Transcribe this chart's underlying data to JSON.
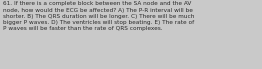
{
  "text": "61. If there is a complete block between the SA node and the AV\nnode, how would the ECG be affected? A) The P-R interval will be\nshorter. B) The QRS duration will be longer. C) There will be much\nbigger P waves. D) The ventricles will stop beating. E) The rate of\nP waves will be faster than the rate of QRS complexes.",
  "background_color": "#c9c9c9",
  "text_color": "#2a2a2a",
  "font_size": 4.15,
  "fig_width": 2.62,
  "fig_height": 0.69,
  "dpi": 100
}
